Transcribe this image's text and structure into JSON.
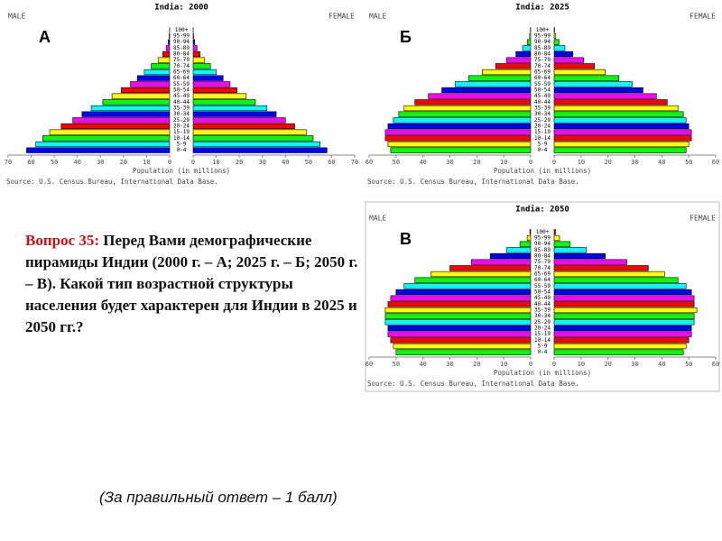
{
  "chart_data": [
    {
      "type": "pyramid",
      "title": "India: 2000",
      "panel_label": "А",
      "x_label": "Population (in millions)",
      "source": "Source: U.S. Census Bureau, International Data Base.",
      "categories": [
        "0-4",
        "5-9",
        "10-14",
        "15-19",
        "20-24",
        "25-29",
        "30-34",
        "35-39",
        "40-44",
        "45-49",
        "50-54",
        "55-59",
        "60-64",
        "65-69",
        "70-74",
        "75-79",
        "80-84",
        "85-89",
        "90-94",
        "95-99",
        "100+"
      ],
      "series": [
        {
          "name": "MALE",
          "values": [
            62,
            58,
            55,
            52,
            47,
            42,
            38,
            34,
            29,
            25,
            21,
            17,
            14,
            11,
            8,
            5,
            3,
            1.5,
            0.6,
            0.2,
            0.05
          ]
        },
        {
          "name": "FEMALE",
          "values": [
            58,
            55,
            52,
            49,
            44,
            40,
            36,
            32,
            27,
            23,
            19,
            16,
            13,
            10,
            7.5,
            5,
            3,
            1.7,
            0.7,
            0.2,
            0.05
          ]
        }
      ],
      "palette": [
        "#0000ff",
        "#00ffff",
        "#00ff00",
        "#ffff00",
        "#ff0000",
        "#ff00ff"
      ],
      "xlim": [
        0,
        70
      ],
      "xticks": [
        0,
        10,
        20,
        30,
        40,
        50,
        60,
        70
      ]
    },
    {
      "type": "pyramid",
      "title": "India: 2025",
      "panel_label": "Б",
      "x_label": "Population (in millions)",
      "source": "Source: U.S. Census Bureau, International Data Base.",
      "categories": [
        "0-4",
        "5-9",
        "10-14",
        "15-19",
        "20-24",
        "25-29",
        "30-34",
        "35-39",
        "40-44",
        "45-49",
        "50-54",
        "55-59",
        "60-64",
        "65-69",
        "70-74",
        "75-79",
        "80-84",
        "85-89",
        "90-94",
        "95-99",
        "100+"
      ],
      "series": [
        {
          "name": "MALE",
          "values": [
            52,
            53,
            54,
            54,
            53,
            51,
            49,
            47,
            43,
            38,
            33,
            28,
            23,
            18,
            13,
            9,
            5.5,
            3,
            1.2,
            0.4,
            0.1
          ]
        },
        {
          "name": "FEMALE",
          "values": [
            49,
            50,
            51,
            51,
            50,
            49,
            48,
            46,
            42,
            38,
            33,
            29,
            24,
            19,
            15,
            11,
            7,
            4,
            1.8,
            0.6,
            0.15
          ]
        }
      ],
      "palette": [
        "#00ff00",
        "#ffff00",
        "#ff0000",
        "#ff00ff",
        "#0000ff",
        "#00ffff"
      ],
      "xlim": [
        0,
        60
      ],
      "xticks": [
        0,
        10,
        20,
        30,
        40,
        50,
        60
      ]
    },
    {
      "type": "pyramid",
      "title": "India: 2050",
      "panel_label": "В",
      "x_label": "Population (in millions)",
      "source": "Source: U.S. Census Bureau, International Data Base.",
      "categories": [
        "0-4",
        "5-9",
        "10-14",
        "15-19",
        "20-24",
        "25-29",
        "30-34",
        "35-39",
        "40-44",
        "45-49",
        "50-54",
        "55-59",
        "60-64",
        "65-69",
        "70-74",
        "75-79",
        "80-84",
        "85-89",
        "90-94",
        "95-99",
        "100+"
      ],
      "series": [
        {
          "name": "MALE",
          "values": [
            50,
            51,
            52,
            53,
            53,
            54,
            54,
            54,
            53,
            52,
            50,
            47,
            43,
            37,
            30,
            22,
            15,
            9,
            4,
            1.3,
            0.3
          ]
        },
        {
          "name": "FEMALE",
          "values": [
            48,
            49,
            50,
            51,
            51,
            52,
            52,
            53,
            52,
            52,
            51,
            49,
            46,
            41,
            35,
            27,
            19,
            12,
            6,
            2,
            0.5
          ]
        }
      ],
      "palette": [
        "#00ff00",
        "#ffff00",
        "#ff0000",
        "#ff00ff",
        "#0000ff",
        "#00ffff"
      ],
      "xlim": [
        0,
        60
      ],
      "xticks": [
        0,
        10,
        20,
        30,
        40,
        50,
        60
      ]
    }
  ],
  "slide_text": {
    "question_number": "Вопрос 35:",
    "question": "Перед Вами демографические пирамиды Индии (2000 г. – А; 2025 г. – Б; 2050 г. – В). Какой тип возрастной структуры населения будет характерен для Индии в 2025 и 2050 гг.?",
    "note": "(За правильный ответ – 1 балл)"
  }
}
